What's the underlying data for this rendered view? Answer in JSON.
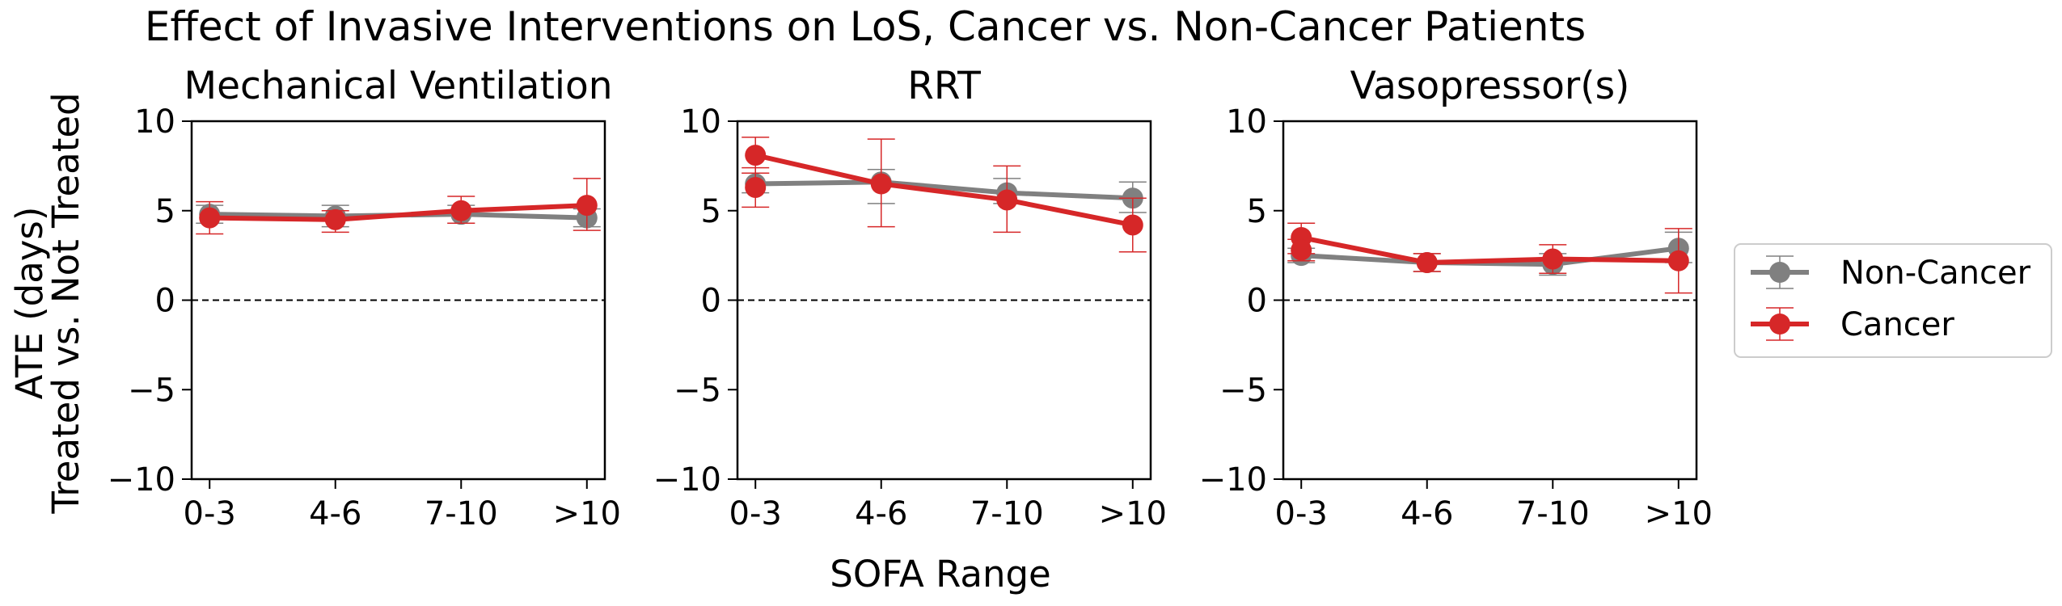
{
  "figure": {
    "title": "Effect of Invasive Interventions on LoS, Cancer vs. Non-Cancer Patients",
    "xlabel": "SOFA Range",
    "ylabel_line1": "ATE (days)",
    "ylabel_line2": "Treated vs. Not Treated"
  },
  "colors": {
    "non_cancer": "#808080",
    "cancer": "#d62728",
    "zero_line": "#000000"
  },
  "legend": {
    "placement": "right",
    "items": [
      {
        "name": "Non-Cancer",
        "color": "#808080"
      },
      {
        "name": "Cancer",
        "color": "#d62728"
      }
    ]
  },
  "chart_data": [
    {
      "type": "line",
      "title": "Mechanical Ventilation",
      "categories": [
        "0-3",
        "4-6",
        "7-10",
        ">10"
      ],
      "x": [
        1.5,
        5,
        8.5,
        12
      ],
      "xlim": [
        1,
        12.5
      ],
      "ylim": [
        -10,
        10
      ],
      "yticks": [
        10,
        5,
        0,
        -5,
        -10
      ],
      "series": [
        {
          "name": "Non-Cancer",
          "values": [
            4.8,
            4.7,
            4.8,
            4.6
          ],
          "err_low": [
            4.3,
            4.1,
            4.3,
            4.1
          ],
          "err_high": [
            5.3,
            5.3,
            5.3,
            5.1
          ]
        },
        {
          "name": "Cancer",
          "values": [
            4.6,
            4.5,
            5.0,
            5.3
          ],
          "err_low": [
            3.7,
            3.8,
            4.3,
            3.9
          ],
          "err_high": [
            5.5,
            5.0,
            5.8,
            6.8
          ]
        }
      ]
    },
    {
      "type": "line",
      "title": "RRT",
      "categories": [
        "0-3",
        "4-6",
        "7-10",
        ">10"
      ],
      "x": [
        1.5,
        5,
        8.5,
        12
      ],
      "xlim": [
        1,
        12.5
      ],
      "ylim": [
        -10,
        10
      ],
      "yticks": [
        10,
        5,
        0,
        -5,
        -10
      ],
      "series": [
        {
          "name": "Non-Cancer",
          "values": [
            6.5,
            6.6,
            6.0,
            5.7
          ],
          "err_low": [
            6.0,
            5.4,
            5.4,
            4.9
          ],
          "err_high": [
            7.1,
            7.3,
            6.8,
            6.6
          ]
        },
        {
          "name": "Cancer",
          "values": [
            8.1,
            6.5,
            5.6,
            4.2
          ],
          "err_low": [
            7.1,
            4.1,
            3.8,
            2.7
          ],
          "err_high": [
            9.1,
            9.0,
            7.5,
            5.7
          ]
        },
        {
          "name": "Cancer",
          "values": [
            6.3
          ],
          "x": [
            1.5
          ],
          "err_low": [
            5.2
          ],
          "err_high": [
            7.4
          ]
        }
      ]
    },
    {
      "type": "line",
      "title": "Vasopressor(s)",
      "categories": [
        "0-3",
        "4-6",
        "7-10",
        ">10"
      ],
      "x": [
        1.5,
        5,
        8.5,
        12
      ],
      "xlim": [
        1,
        12.5
      ],
      "ylim": [
        -10,
        10
      ],
      "yticks": [
        10,
        5,
        0,
        -5,
        -10
      ],
      "series": [
        {
          "name": "Non-Cancer",
          "values": [
            2.5,
            2.1,
            2.0,
            2.9
          ],
          "err_low": [
            2.1,
            1.6,
            1.4,
            2.1
          ],
          "err_high": [
            2.9,
            2.6,
            2.6,
            3.8
          ]
        },
        {
          "name": "Cancer",
          "values": [
            3.5,
            2.1,
            2.3,
            2.2
          ],
          "err_low": [
            2.6,
            1.6,
            1.5,
            0.4
          ],
          "err_high": [
            4.3,
            2.6,
            3.1,
            4.0
          ]
        },
        {
          "name": "Cancer",
          "values": [
            2.8
          ],
          "x": [
            1.5
          ],
          "err_low": [
            2.2
          ],
          "err_high": [
            3.4
          ]
        }
      ]
    }
  ]
}
